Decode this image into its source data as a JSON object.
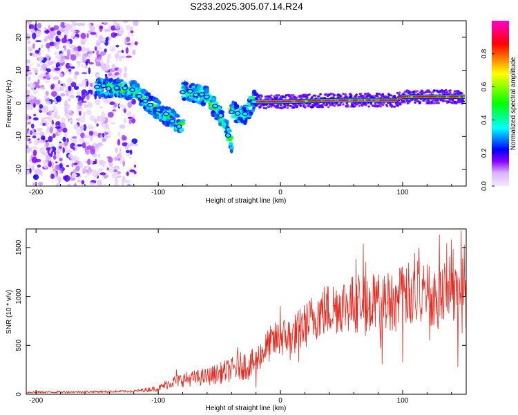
{
  "title": "S233.2025.305.07.14.R24",
  "chart_data": [
    {
      "type": "heatmap",
      "title": "S233.2025.305.07.14.R24",
      "xlabel": "Height of straight line (km)",
      "ylabel": "Frequency (Hz)",
      "xlim": [
        -208,
        152
      ],
      "ylim": [
        -25,
        25
      ],
      "xticks": [
        -200,
        -100,
        0,
        100
      ],
      "yticks": [
        -20,
        -10,
        0,
        10,
        20
      ],
      "colorbar": {
        "label": "Normalized spectral amplitude",
        "range": [
          0,
          1
        ],
        "ticks": [
          0.0,
          0.2,
          0.4,
          0.6,
          0.8
        ],
        "tick_labels": [
          "0.0",
          "0.2",
          "0.4",
          "0.6",
          "0.8"
        ],
        "colors": [
          "#f4e8ff",
          "#8800ff",
          "#0000ff",
          "#00ffff",
          "#00ff00",
          "#ffff00",
          "#ff0000",
          "#ff00ff"
        ]
      },
      "ridges": [
        {
          "name": "noise region",
          "x": [
            -208,
            -118
          ],
          "frequency_hz": [
            -25,
            25
          ],
          "amplitude": [
            0.0,
            0.2
          ]
        },
        {
          "name": "descending track A",
          "x": [
            -150,
            -120,
            -100,
            -80
          ],
          "frequency_hz": [
            5,
            4,
            -2,
            -7
          ],
          "amplitude": [
            0.3,
            0.4
          ]
        },
        {
          "name": "descending track B",
          "x": [
            -80,
            -60,
            -50,
            -40
          ],
          "frequency_hz": [
            4,
            2,
            -3,
            -12
          ],
          "amplitude": [
            0.3,
            0.45
          ]
        },
        {
          "name": "descending track C",
          "x": [
            -40,
            -30,
            -20
          ],
          "frequency_hz": [
            -2,
            -4,
            2
          ],
          "amplitude": [
            0.3,
            0.4
          ]
        },
        {
          "name": "carrier line",
          "x": [
            -20,
            0,
            50,
            95,
            100,
            150
          ],
          "frequency_hz": [
            0.5,
            0.5,
            1,
            1,
            2,
            2
          ],
          "amplitude": [
            0.8,
            1.0
          ]
        }
      ]
    },
    {
      "type": "line",
      "xlabel": "Height of straight line (km)",
      "ylabel": "SNR (10 * v/v)",
      "xlim": [
        -208,
        152
      ],
      "ylim": [
        0,
        1690
      ],
      "xticks": [
        -200,
        -100,
        0,
        100
      ],
      "yticks": [
        0,
        500,
        1000,
        1500
      ],
      "series": [
        {
          "name": "SNR",
          "color": "#e8281e",
          "x": [
            -208,
            -120,
            -100,
            -90,
            -80,
            -60,
            -40,
            -30,
            -25,
            -20,
            -10,
            0,
            10,
            20,
            30,
            50,
            70,
            90,
            100,
            110,
            130,
            140,
            150
          ],
          "y": [
            20,
            30,
            60,
            120,
            150,
            180,
            250,
            300,
            280,
            350,
            500,
            580,
            600,
            700,
            820,
            920,
            930,
            960,
            1000,
            1050,
            1000,
            1100,
            900
          ],
          "peaks": [
            [
              -85,
              250
            ],
            [
              -35,
              480
            ],
            [
              -20,
              820
            ],
            [
              0,
              900
            ],
            [
              100,
              1550
            ],
            [
              130,
              1630
            ],
            [
              140,
              1580
            ],
            [
              148,
              1670
            ]
          ],
          "dips": [
            [
              -20,
              70
            ],
            [
              8,
              350
            ],
            [
              15,
              330
            ],
            [
              100,
              330
            ],
            [
              145,
              280
            ]
          ]
        }
      ]
    }
  ]
}
